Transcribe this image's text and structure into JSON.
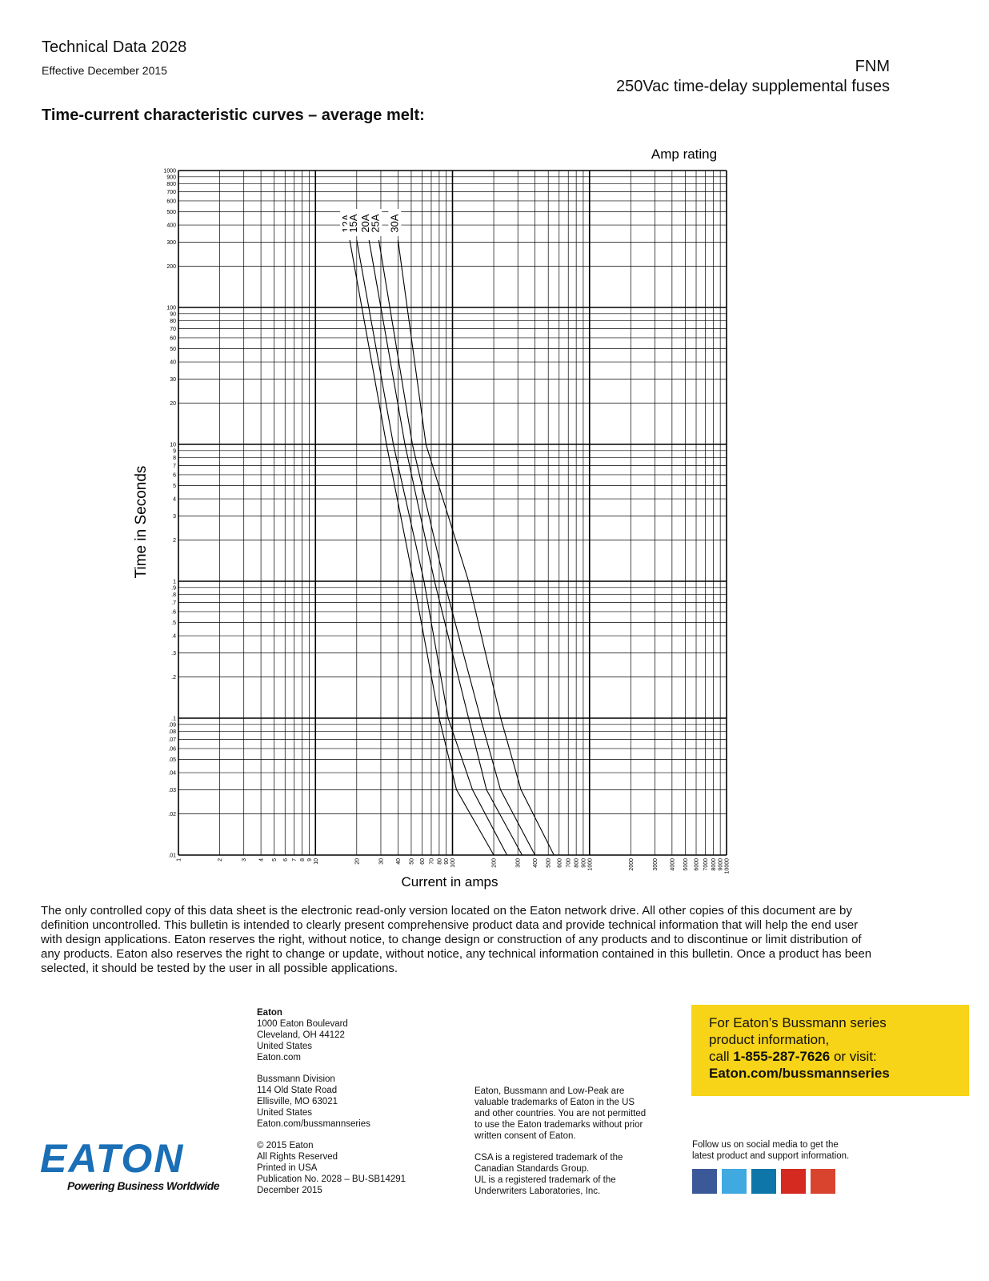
{
  "header": {
    "doc_title": "Technical Data 2028",
    "effective": "Effective December 2015",
    "product": "FNM",
    "product_desc": "250Vac time-delay supplemental fuses"
  },
  "section_title": "Time-current characteristic curves – average melt:",
  "chart_data": {
    "type": "line",
    "legend_title": "Amp rating",
    "x_label": "Current in amps",
    "y_label": "Time in Seconds",
    "x_log": true,
    "y_log": true,
    "grid": true,
    "xlim": [
      1,
      10000
    ],
    "ylim": [
      0.01,
      1000
    ],
    "xticks": [
      1,
      2,
      3,
      4,
      5,
      6,
      7,
      8,
      9,
      10,
      20,
      30,
      40,
      50,
      60,
      70,
      80,
      90,
      100,
      200,
      300,
      400,
      500,
      600,
      700,
      800,
      900,
      1000,
      2000,
      3000,
      4000,
      5000,
      6000,
      7000,
      8000,
      9000,
      10000
    ],
    "yticks": [
      1000,
      900,
      800,
      700,
      600,
      500,
      400,
      300,
      200,
      100,
      90,
      80,
      70,
      60,
      50,
      40,
      30,
      20,
      10,
      9,
      8,
      7,
      6,
      5,
      4,
      3,
      2,
      1,
      {
        "value": 0.9,
        "label": ".9"
      },
      {
        "value": 0.8,
        "label": ".8"
      },
      {
        "value": 0.7,
        "label": ".7"
      },
      {
        "value": 0.6,
        "label": ".6"
      },
      {
        "value": 0.5,
        "label": ".5"
      },
      {
        "value": 0.4,
        "label": ".4"
      },
      {
        "value": 0.3,
        "label": ".3"
      },
      {
        "value": 0.2,
        "label": ".2"
      },
      {
        "value": 0.1,
        "label": ".1"
      },
      {
        "value": 0.09,
        "label": ".09"
      },
      {
        "value": 0.08,
        "label": ".08"
      },
      {
        "value": 0.07,
        "label": ".07"
      },
      {
        "value": 0.06,
        "label": ".06"
      },
      {
        "value": 0.05,
        "label": ".05"
      },
      {
        "value": 0.04,
        "label": ".04"
      },
      {
        "value": 0.03,
        "label": ".03"
      },
      {
        "value": 0.02,
        "label": ".02"
      },
      {
        "value": 0.01,
        "label": ".01"
      }
    ],
    "series": [
      {
        "name": "12A",
        "color": "#000000",
        "x": [
          17.8,
          33,
          52,
          80,
          107,
          200
        ],
        "values": [
          310,
          10,
          1,
          0.1,
          0.03,
          0.01
        ]
      },
      {
        "name": "15A",
        "color": "#000000",
        "x": [
          20,
          37,
          62,
          93,
          140,
          250
        ],
        "values": [
          310,
          10,
          1,
          0.1,
          0.03,
          0.01
        ]
      },
      {
        "name": "20A",
        "color": "#000000",
        "x": [
          24.6,
          45,
          74,
          131,
          177,
          322
        ],
        "values": [
          310,
          10,
          1,
          0.1,
          0.03,
          0.01
        ]
      },
      {
        "name": "25A",
        "color": "#000000",
        "x": [
          29,
          51,
          87,
          160,
          224,
          400
        ],
        "values": [
          310,
          10,
          1,
          0.1,
          0.03,
          0.01
        ]
      },
      {
        "name": "30A",
        "color": "#000000",
        "x": [
          40,
          64,
          131,
          225,
          316,
          550
        ],
        "values": [
          310,
          10,
          1,
          0.1,
          0.03,
          0.01
        ]
      }
    ]
  },
  "disclaimer": "The only controlled copy of this data sheet is the electronic read-only version located on the Eaton network drive. All other copies of this document are by definition uncontrolled. This bulletin is intended to clearly present comprehensive product data and provide technical information that will help the end user with design applications. Eaton reserves the right, without notice, to change design or construction of any products and to discontinue or limit distribution of any products. Eaton also reserves the right to change or update, without notice, any technical information  contained in this bulletin. Once a product has been selected, it should be tested by the user in all possible applications.",
  "footer": {
    "eaton_name": "Eaton",
    "eaton_address": [
      "1000 Eaton Boulevard",
      "Cleveland, OH 44122",
      "United States",
      "Eaton.com"
    ],
    "bussmann": [
      "Bussmann Division",
      "114 Old State Road",
      "Ellisville, MO 63021",
      "United States",
      "Eaton.com/bussmannseries"
    ],
    "copyright": [
      "© 2015 Eaton",
      "All Rights Reserved",
      "Printed in USA",
      "Publication No. 2028 – BU-SB14291",
      "December 2015"
    ],
    "trademarks": [
      "Eaton, Bussmann and Low-Peak are",
      "valuable trademarks of Eaton in the US",
      "and other countries. You are not permitted",
      "to use the Eaton trademarks without prior",
      "written consent of Eaton."
    ],
    "csa": [
      "CSA is a registered trademark of the",
      "Canadian Standards Group.",
      "UL is a registered trademark of the",
      "Underwriters Laboratories, Inc."
    ],
    "promo_line1": "For Eaton’s Bussmann series",
    "promo_line2": "product information,",
    "promo_call": "call ",
    "promo_phone": "1-855-287-7626",
    "promo_visit": " or visit:",
    "promo_url": "Eaton.com/bussmannseries",
    "social": [
      "Follow us on social media to get the",
      "latest product and support information."
    ],
    "logo": "EATON",
    "tagline": "Powering Business Worldwide"
  }
}
